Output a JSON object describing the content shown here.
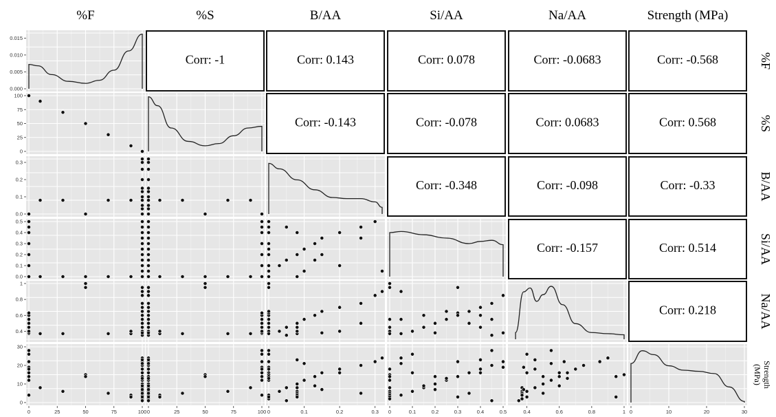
{
  "chart_data": {
    "type": "scatter",
    "variables": [
      {
        "key": "F",
        "label": "%F",
        "row_label": "%F",
        "range": [
          0,
          100
        ],
        "ticks": [
          0,
          25,
          50,
          75,
          100
        ]
      },
      {
        "key": "S",
        "label": "%S",
        "row_label": "%S",
        "range": [
          0,
          100
        ],
        "ticks": [
          0,
          25,
          50,
          75,
          100
        ]
      },
      {
        "key": "B",
        "label": "B/AA",
        "row_label": "B/AA",
        "range": [
          0,
          0.32
        ],
        "ticks": [
          0.0,
          0.1,
          0.2,
          0.3
        ]
      },
      {
        "key": "Si",
        "label": "Si/AA",
        "row_label": "Si/AA",
        "range": [
          0,
          0.5
        ],
        "ticks": [
          0.0,
          0.1,
          0.2,
          0.3,
          0.4,
          0.5
        ]
      },
      {
        "key": "Na",
        "label": "Na/AA",
        "row_label": "Na/AA",
        "range": [
          0.3,
          1.0
        ],
        "ticks": [
          0.4,
          0.6,
          0.8,
          1.0
        ]
      },
      {
        "key": "Str",
        "label": "Strength (MPa)",
        "row_label": "Strength (MPa)",
        "range": [
          0,
          30
        ],
        "ticks": [
          0,
          10,
          20,
          30
        ]
      }
    ],
    "density_yticks_row1": [
      "0.000",
      "0.005",
      "0.010",
      "0.015"
    ],
    "correlations": [
      {
        "row": 0,
        "col": 1,
        "text": "Corr: -1"
      },
      {
        "row": 0,
        "col": 2,
        "text": "Corr: 0.143"
      },
      {
        "row": 0,
        "col": 3,
        "text": "Corr: 0.078"
      },
      {
        "row": 0,
        "col": 4,
        "text": "Corr: -0.0683"
      },
      {
        "row": 0,
        "col": 5,
        "text": "Corr: -0.568"
      },
      {
        "row": 1,
        "col": 2,
        "text": "Corr: -0.143"
      },
      {
        "row": 1,
        "col": 3,
        "text": "Corr: -0.078"
      },
      {
        "row": 1,
        "col": 4,
        "text": "Corr: 0.0683"
      },
      {
        "row": 1,
        "col": 5,
        "text": "Corr: 0.568"
      },
      {
        "row": 2,
        "col": 3,
        "text": "Corr: -0.348"
      },
      {
        "row": 2,
        "col": 4,
        "text": "Corr: -0.098"
      },
      {
        "row": 2,
        "col": 5,
        "text": "Corr: -0.33"
      },
      {
        "row": 3,
        "col": 4,
        "text": "Corr: -0.157"
      },
      {
        "row": 3,
        "col": 5,
        "text": "Corr: 0.514"
      },
      {
        "row": 4,
        "col": 5,
        "text": "Corr: 0.218"
      }
    ],
    "densities": [
      [
        [
          0,
          0.0072
        ],
        [
          8,
          0.0068
        ],
        [
          20,
          0.0042
        ],
        [
          35,
          0.0022
        ],
        [
          50,
          0.0016
        ],
        [
          62,
          0.0025
        ],
        [
          75,
          0.0055
        ],
        [
          88,
          0.0112
        ],
        [
          100,
          0.0162
        ]
      ],
      [
        [
          0,
          98
        ],
        [
          8,
          82
        ],
        [
          20,
          42
        ],
        [
          35,
          18
        ],
        [
          50,
          10
        ],
        [
          62,
          14
        ],
        [
          75,
          28
        ],
        [
          88,
          42
        ],
        [
          100,
          45
        ]
      ],
      [
        [
          0,
          0.92
        ],
        [
          0.03,
          0.82
        ],
        [
          0.08,
          0.62
        ],
        [
          0.13,
          0.44
        ],
        [
          0.18,
          0.3
        ],
        [
          0.22,
          0.28
        ],
        [
          0.26,
          0.28
        ],
        [
          0.3,
          0.22
        ],
        [
          0.32,
          0.12
        ]
      ],
      [
        [
          0,
          0.8
        ],
        [
          0.05,
          0.82
        ],
        [
          0.15,
          0.76
        ],
        [
          0.25,
          0.7
        ],
        [
          0.35,
          0.6
        ],
        [
          0.4,
          0.64
        ],
        [
          0.45,
          0.66
        ],
        [
          0.5,
          0.58
        ]
      ],
      [
        [
          0.33,
          0.12
        ],
        [
          0.38,
          0.85
        ],
        [
          0.42,
          0.92
        ],
        [
          0.46,
          0.68
        ],
        [
          0.5,
          0.8
        ],
        [
          0.55,
          0.95
        ],
        [
          0.62,
          0.62
        ],
        [
          0.7,
          0.28
        ],
        [
          0.8,
          0.12
        ],
        [
          0.9,
          0.1
        ],
        [
          1.0,
          0.08
        ]
      ],
      [
        [
          0,
          0.7
        ],
        [
          3,
          0.93
        ],
        [
          6,
          0.86
        ],
        [
          10,
          0.66
        ],
        [
          14,
          0.58
        ],
        [
          18,
          0.56
        ],
        [
          22,
          0.52
        ],
        [
          26,
          0.28
        ],
        [
          30,
          0.02
        ]
      ]
    ],
    "points": [
      {
        "F": 0,
        "S": 100,
        "B": 0.0,
        "Si": 0.0,
        "Na": 0.37,
        "Str": 4
      },
      {
        "F": 0,
        "S": 100,
        "B": 0.0,
        "Si": 0.5,
        "Na": 0.38,
        "Str": 19
      },
      {
        "F": 0,
        "S": 100,
        "B": 0.0,
        "Si": 0.45,
        "Na": 0.55,
        "Str": 28
      },
      {
        "F": 0,
        "S": 100,
        "B": 0.0,
        "Si": 0.4,
        "Na": 0.6,
        "Str": 16
      },
      {
        "F": 0,
        "S": 100,
        "B": 0.0,
        "Si": 0.3,
        "Na": 0.63,
        "Str": 22
      },
      {
        "F": 0,
        "S": 100,
        "B": 0.0,
        "Si": 0.2,
        "Na": 0.5,
        "Str": 14
      },
      {
        "F": 0,
        "S": 100,
        "B": 0.0,
        "Si": 0.1,
        "Na": 0.4,
        "Str": 26
      },
      {
        "F": 0,
        "S": 100,
        "B": 0.0,
        "Si": 0.0,
        "Na": 0.55,
        "Str": 12
      },
      {
        "F": 0,
        "S": 100,
        "B": 0.0,
        "Si": 0.0,
        "Na": 0.45,
        "Str": 18
      },
      {
        "F": 10,
        "S": 90,
        "B": 0.08,
        "Si": 0.0,
        "Na": 0.37,
        "Str": 8
      },
      {
        "F": 30,
        "S": 70,
        "B": 0.08,
        "Si": 0.0,
        "Na": 0.37,
        "Str": 6
      },
      {
        "F": 50,
        "S": 50,
        "B": 0.0,
        "Si": 0.0,
        "Na": 1.0,
        "Str": 15
      },
      {
        "F": 50,
        "S": 50,
        "B": 0.0,
        "Si": 0.0,
        "Na": 0.95,
        "Str": 14
      },
      {
        "F": 70,
        "S": 30,
        "B": 0.08,
        "Si": 0.0,
        "Na": 0.37,
        "Str": 5
      },
      {
        "F": 90,
        "S": 10,
        "B": 0.08,
        "Si": 0.0,
        "Na": 0.37,
        "Str": 4
      },
      {
        "F": 90,
        "S": 10,
        "B": 0.08,
        "Si": 0.0,
        "Na": 0.4,
        "Str": 3
      },
      {
        "F": 100,
        "S": 0,
        "B": 0.0,
        "Si": 0.0,
        "Na": 0.37,
        "Str": 2
      },
      {
        "F": 100,
        "S": 0,
        "B": 0.0,
        "Si": 0.05,
        "Na": 0.37,
        "Str": 4
      },
      {
        "F": 100,
        "S": 0,
        "B": 0.03,
        "Si": 0.1,
        "Na": 0.4,
        "Str": 6
      },
      {
        "F": 100,
        "S": 0,
        "B": 0.05,
        "Si": 0.15,
        "Na": 0.45,
        "Str": 8
      },
      {
        "F": 100,
        "S": 0,
        "B": 0.08,
        "Si": 0.2,
        "Na": 0.5,
        "Str": 10
      },
      {
        "F": 100,
        "S": 0,
        "B": 0.1,
        "Si": 0.25,
        "Na": 0.55,
        "Str": 12
      },
      {
        "F": 100,
        "S": 0,
        "B": 0.13,
        "Si": 0.3,
        "Na": 0.6,
        "Str": 14
      },
      {
        "F": 100,
        "S": 0,
        "B": 0.15,
        "Si": 0.35,
        "Na": 0.65,
        "Str": 16
      },
      {
        "F": 100,
        "S": 0,
        "B": 0.2,
        "Si": 0.4,
        "Na": 0.7,
        "Str": 18
      },
      {
        "F": 100,
        "S": 0,
        "B": 0.26,
        "Si": 0.45,
        "Na": 0.75,
        "Str": 20
      },
      {
        "F": 100,
        "S": 0,
        "B": 0.3,
        "Si": 0.5,
        "Na": 0.85,
        "Str": 22
      },
      {
        "F": 100,
        "S": 0,
        "B": 0.32,
        "Si": 0.05,
        "Na": 0.9,
        "Str": 24
      },
      {
        "F": 100,
        "S": 0,
        "B": 0.0,
        "Si": 0.3,
        "Na": 0.95,
        "Str": 3
      },
      {
        "F": 100,
        "S": 0,
        "B": 0.1,
        "Si": 0.05,
        "Na": 0.55,
        "Str": 21
      },
      {
        "F": 100,
        "S": 0,
        "B": 0.2,
        "Si": 0.1,
        "Na": 0.4,
        "Str": 16
      },
      {
        "F": 100,
        "S": 0,
        "B": 0.05,
        "Si": 0.45,
        "Na": 0.35,
        "Str": 1
      },
      {
        "F": 100,
        "S": 0,
        "B": 0.13,
        "Si": 0.15,
        "Na": 0.6,
        "Str": 9
      },
      {
        "F": 100,
        "S": 0,
        "B": 0.26,
        "Si": 0.35,
        "Na": 0.5,
        "Str": 5
      },
      {
        "F": 100,
        "S": 0,
        "B": 0.0,
        "Si": 0.25,
        "Na": 0.65,
        "Str": 13
      },
      {
        "F": 100,
        "S": 0,
        "B": 0.08,
        "Si": 0.4,
        "Na": 0.45,
        "Str": 23
      },
      {
        "F": 100,
        "S": 0,
        "B": 0.15,
        "Si": 0.2,
        "Na": 0.38,
        "Str": 7
      }
    ]
  }
}
